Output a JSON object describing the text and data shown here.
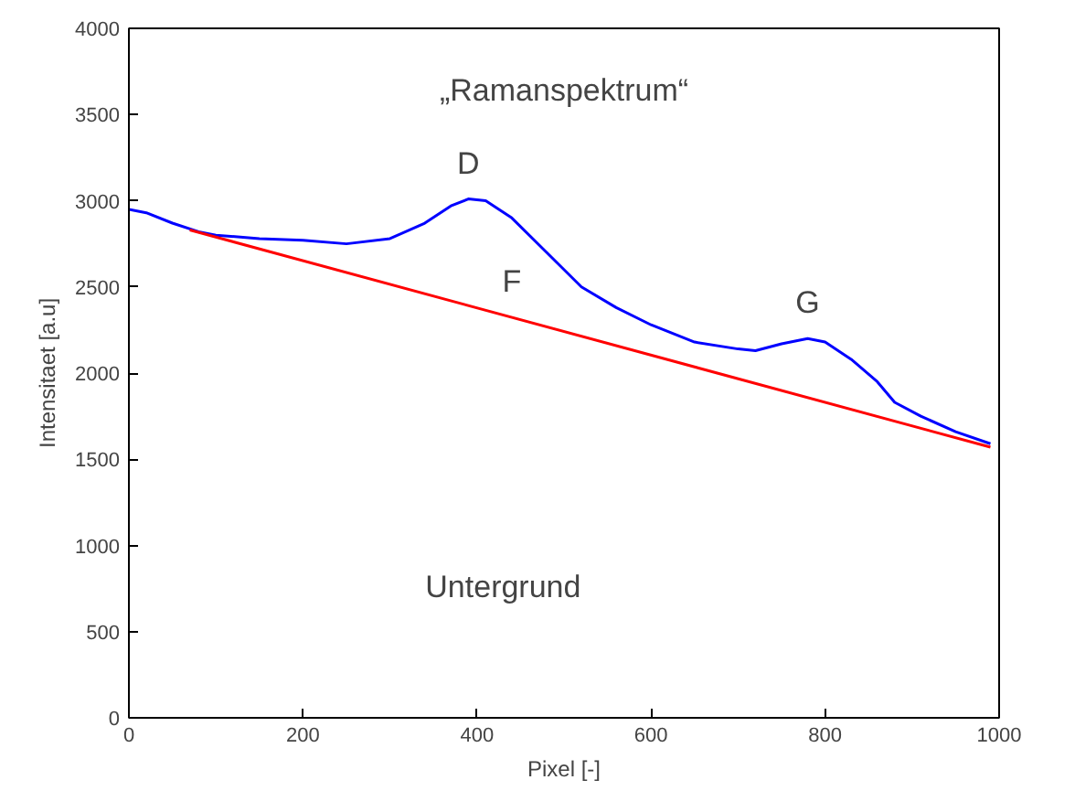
{
  "chart_data": {
    "type": "line",
    "title": "„Ramanspektrum“",
    "xlabel": "Pixel [-]",
    "ylabel": "Intensitaet [a.u]",
    "xlim": [
      0,
      1000
    ],
    "ylim": [
      0,
      4000
    ],
    "xticks": [
      0,
      200,
      400,
      600,
      800,
      1000
    ],
    "yticks": [
      0,
      500,
      1000,
      1500,
      2000,
      2500,
      3000,
      3500,
      4000
    ],
    "grid": false,
    "series": [
      {
        "color": "#0000ff",
        "x": [
          0,
          20,
          50,
          80,
          100,
          150,
          200,
          250,
          300,
          340,
          370,
          390,
          410,
          440,
          480,
          520,
          560,
          600,
          650,
          700,
          720,
          750,
          780,
          800,
          830,
          860,
          880,
          910,
          950,
          990
        ],
        "values": [
          2950,
          2930,
          2870,
          2820,
          2800,
          2780,
          2770,
          2750,
          2780,
          2870,
          2970,
          3010,
          3000,
          2900,
          2700,
          2500,
          2380,
          2280,
          2180,
          2140,
          2130,
          2170,
          2200,
          2180,
          2080,
          1950,
          1830,
          1750,
          1660,
          1590
        ]
      },
      {
        "color": "#ff0000",
        "x": [
          70,
          990
        ],
        "values": [
          2830,
          1570
        ]
      }
    ],
    "annotations": [
      {
        "text": "D",
        "x": 390,
        "y": 3010
      },
      {
        "text": "F",
        "x": 440,
        "y": 2323
      },
      {
        "text": "G",
        "x": 780,
        "y": 2200
      },
      "Untergrund"
    ]
  }
}
